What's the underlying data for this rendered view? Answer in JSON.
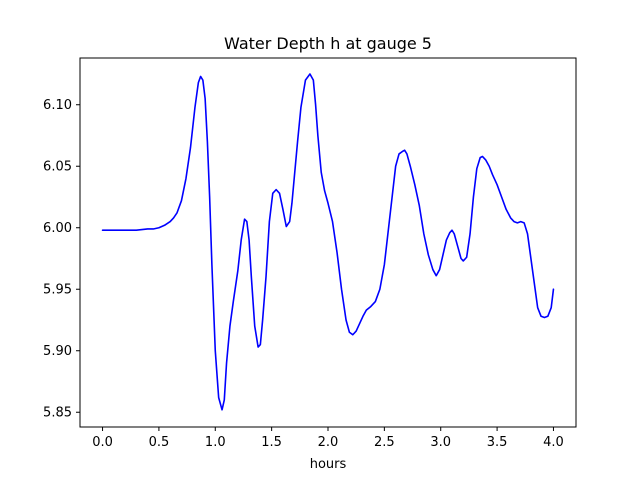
{
  "chart_data": {
    "type": "line",
    "title": "Water Depth h at gauge 5",
    "xlabel": "hours",
    "ylabel": "",
    "xlim": [
      -0.2,
      4.2
    ],
    "ylim": [
      5.838,
      6.138
    ],
    "xticks": [
      0.0,
      0.5,
      1.0,
      1.5,
      2.0,
      2.5,
      3.0,
      3.5,
      4.0
    ],
    "xtick_labels": [
      "0.0",
      "0.5",
      "1.0",
      "1.5",
      "2.0",
      "2.5",
      "3.0",
      "3.5",
      "4.0"
    ],
    "yticks": [
      5.85,
      5.9,
      5.95,
      6.0,
      6.05,
      6.1
    ],
    "ytick_labels": [
      "5.85",
      "5.90",
      "5.95",
      "6.00",
      "6.05",
      "6.10"
    ],
    "grid": false,
    "legend": "none",
    "series": [
      {
        "color": "#0000ff",
        "x": [
          0.0,
          0.1,
          0.2,
          0.3,
          0.4,
          0.45,
          0.5,
          0.55,
          0.6,
          0.63,
          0.66,
          0.7,
          0.74,
          0.78,
          0.82,
          0.85,
          0.87,
          0.89,
          0.91,
          0.93,
          0.95,
          0.97,
          1.0,
          1.03,
          1.06,
          1.08,
          1.1,
          1.13,
          1.16,
          1.2,
          1.23,
          1.26,
          1.28,
          1.3,
          1.32,
          1.35,
          1.38,
          1.4,
          1.42,
          1.45,
          1.48,
          1.51,
          1.54,
          1.57,
          1.6,
          1.63,
          1.66,
          1.68,
          1.7,
          1.73,
          1.76,
          1.8,
          1.84,
          1.87,
          1.89,
          1.91,
          1.94,
          1.97,
          2.0,
          2.04,
          2.08,
          2.12,
          2.16,
          2.19,
          2.22,
          2.25,
          2.28,
          2.31,
          2.34,
          2.38,
          2.42,
          2.46,
          2.5,
          2.55,
          2.6,
          2.63,
          2.66,
          2.68,
          2.7,
          2.73,
          2.77,
          2.81,
          2.85,
          2.89,
          2.93,
          2.96,
          2.99,
          3.02,
          3.05,
          3.08,
          3.1,
          3.12,
          3.15,
          3.18,
          3.2,
          3.23,
          3.26,
          3.29,
          3.32,
          3.35,
          3.37,
          3.4,
          3.43,
          3.46,
          3.5,
          3.54,
          3.58,
          3.62,
          3.65,
          3.68,
          3.71,
          3.74,
          3.77,
          3.8,
          3.83,
          3.86,
          3.89,
          3.92,
          3.95,
          3.98,
          4.0
        ],
        "y": [
          5.998,
          5.998,
          5.998,
          5.998,
          5.999,
          5.999,
          6.0,
          6.002,
          6.005,
          6.008,
          6.012,
          6.022,
          6.04,
          6.065,
          6.098,
          6.118,
          6.123,
          6.12,
          6.105,
          6.07,
          6.025,
          5.97,
          5.9,
          5.862,
          5.852,
          5.86,
          5.89,
          5.92,
          5.94,
          5.965,
          5.99,
          6.007,
          6.005,
          5.99,
          5.96,
          5.92,
          5.903,
          5.905,
          5.925,
          5.96,
          6.005,
          6.028,
          6.031,
          6.028,
          6.015,
          6.001,
          6.005,
          6.02,
          6.04,
          6.07,
          6.098,
          6.12,
          6.125,
          6.12,
          6.1,
          6.075,
          6.045,
          6.03,
          6.02,
          6.005,
          5.98,
          5.95,
          5.925,
          5.915,
          5.913,
          5.916,
          5.922,
          5.928,
          5.933,
          5.936,
          5.94,
          5.95,
          5.97,
          6.01,
          6.05,
          6.06,
          6.062,
          6.063,
          6.06,
          6.05,
          6.035,
          6.018,
          5.995,
          5.978,
          5.966,
          5.961,
          5.966,
          5.978,
          5.99,
          5.996,
          5.998,
          5.995,
          5.985,
          5.975,
          5.973,
          5.976,
          5.995,
          6.025,
          6.048,
          6.057,
          6.058,
          6.055,
          6.05,
          6.043,
          6.035,
          6.025,
          6.015,
          6.008,
          6.005,
          6.004,
          6.005,
          6.004,
          5.995,
          5.975,
          5.955,
          5.935,
          5.928,
          5.927,
          5.928,
          5.935,
          5.95
        ]
      }
    ]
  }
}
